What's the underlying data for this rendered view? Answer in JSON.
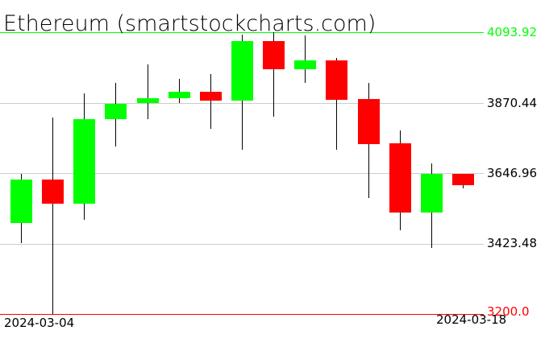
{
  "chart_data": {
    "type": "candlestick",
    "title": "Ethereum (smartstockcharts.com)",
    "ylim": [
      3200.0,
      4093.92
    ],
    "y_ticks": [
      "4093.92",
      "3870.44",
      "3646.96",
      "3423.48",
      "3200.0"
    ],
    "x_tick_labels": [
      "2024-03-04",
      "2024-03-18"
    ],
    "grid": true,
    "colors": {
      "up": "#00ff00",
      "down": "#ff0000",
      "wick": "#000000",
      "grid": "#cccccc",
      "top_line": "#00ff00",
      "bottom_line": "#ff0000"
    },
    "candles": [
      {
        "date": "2024-03-04",
        "open": 3488.6,
        "high": 3644.4,
        "low": 3424.8,
        "close": 3626.5
      },
      {
        "date": "2024-03-05",
        "open": 3626.5,
        "high": 3823.2,
        "low": 3200.0,
        "close": 3549.9
      },
      {
        "date": "2024-03-06",
        "open": 3549.9,
        "high": 3899.8,
        "low": 3498.8,
        "close": 3818.1
      },
      {
        "date": "2024-03-07",
        "open": 3818.1,
        "high": 3933.0,
        "low": 3731.2,
        "close": 3866.6
      },
      {
        "date": "2024-03-08",
        "open": 3869.2,
        "high": 3991.8,
        "low": 3818.1,
        "close": 3884.5
      },
      {
        "date": "2024-03-09",
        "open": 3884.5,
        "high": 3945.8,
        "low": 3869.2,
        "close": 3904.9
      },
      {
        "date": "2024-03-10",
        "open": 3904.9,
        "high": 3961.1,
        "low": 3787.4,
        "close": 3876.8
      },
      {
        "date": "2024-03-11",
        "open": 3876.8,
        "high": 4086.3,
        "low": 3721.0,
        "close": 4065.8
      },
      {
        "date": "2024-03-12",
        "open": 4065.8,
        "high": 4093.9,
        "low": 3825.7,
        "close": 3976.4
      },
      {
        "date": "2024-03-13",
        "open": 3976.4,
        "high": 4083.7,
        "low": 3933.0,
        "close": 4004.5
      },
      {
        "date": "2024-03-14",
        "open": 4004.5,
        "high": 4012.2,
        "low": 3721.0,
        "close": 3879.4
      },
      {
        "date": "2024-03-15",
        "open": 3881.9,
        "high": 3933.0,
        "low": 3567.8,
        "close": 3738.9
      },
      {
        "date": "2024-03-16",
        "open": 3741.5,
        "high": 3782.3,
        "low": 3465.6,
        "close": 3521.8
      },
      {
        "date": "2024-03-17",
        "open": 3521.8,
        "high": 3677.6,
        "low": 3409.4,
        "close": 3644.4
      },
      {
        "date": "2024-03-18",
        "open": 3644.4,
        "high": 3644.4,
        "low": 3598.4,
        "close": 3608.6
      }
    ]
  }
}
